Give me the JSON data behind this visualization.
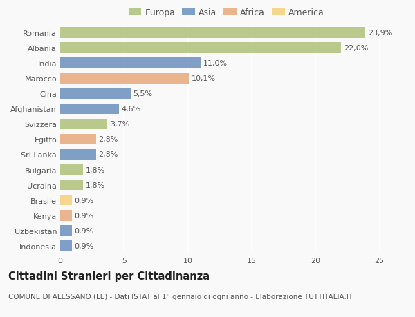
{
  "countries": [
    "Romania",
    "Albania",
    "India",
    "Marocco",
    "Cina",
    "Afghanistan",
    "Svizzera",
    "Egitto",
    "Sri Lanka",
    "Bulgaria",
    "Ucraina",
    "Brasile",
    "Kenya",
    "Uzbekistan",
    "Indonesia"
  ],
  "values": [
    23.9,
    22.0,
    11.0,
    10.1,
    5.5,
    4.6,
    3.7,
    2.8,
    2.8,
    1.8,
    1.8,
    0.9,
    0.9,
    0.9,
    0.9
  ],
  "labels": [
    "23,9%",
    "22,0%",
    "11,0%",
    "10,1%",
    "5,5%",
    "4,6%",
    "3,7%",
    "2,8%",
    "2,8%",
    "1,8%",
    "1,8%",
    "0,9%",
    "0,9%",
    "0,9%",
    "0,9%"
  ],
  "continents": [
    "Europa",
    "Europa",
    "Asia",
    "Africa",
    "Asia",
    "Asia",
    "Europa",
    "Africa",
    "Asia",
    "Europa",
    "Europa",
    "America",
    "Africa",
    "Asia",
    "Asia"
  ],
  "colors": {
    "Europa": "#adc178",
    "Asia": "#6b8fbe",
    "Africa": "#e8a87c",
    "America": "#f5d07a"
  },
  "legend_order": [
    "Europa",
    "Asia",
    "Africa",
    "America"
  ],
  "title": "Cittadini Stranieri per Cittadinanza",
  "subtitle": "COMUNE DI ALESSANO (LE) - Dati ISTAT al 1° gennaio di ogni anno - Elaborazione TUTTITALIA.IT",
  "xlim": [
    0,
    26
  ],
  "xticks": [
    0,
    5,
    10,
    15,
    20,
    25
  ],
  "background_color": "#f9f9f9",
  "grid_color": "#ffffff",
  "text_color": "#555555",
  "label_fontsize": 8,
  "tick_fontsize": 8,
  "title_fontsize": 10.5,
  "subtitle_fontsize": 7.5,
  "bar_height": 0.7,
  "bar_alpha": 0.85
}
